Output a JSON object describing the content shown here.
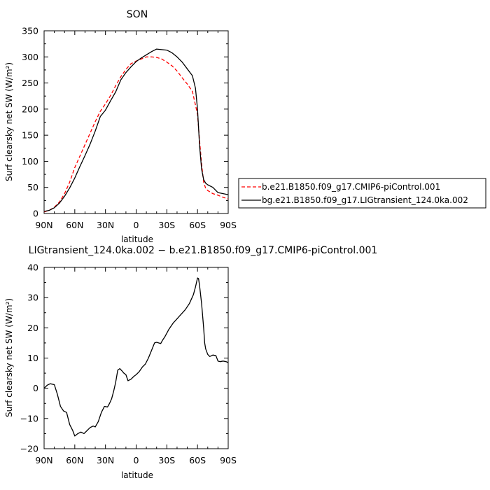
{
  "chart_data": [
    {
      "type": "line",
      "title": "SON",
      "xlabel": "latitude",
      "ylabel": "Surf clearsky net SW (W/m²)",
      "xlim": [
        90,
        -90
      ],
      "ylim": [
        0,
        350
      ],
      "x_ticks": [
        90,
        60,
        30,
        0,
        -30,
        -60,
        -90
      ],
      "x_tick_labels": [
        "90N",
        "60N",
        "30N",
        "0",
        "30S",
        "60S",
        "90S"
      ],
      "y_ticks": [
        0,
        50,
        100,
        150,
        200,
        250,
        300,
        350
      ],
      "y_tick_labels": [
        "0",
        "50",
        "100",
        "150",
        "200",
        "250",
        "300",
        "350"
      ],
      "legend_position": "right",
      "series": [
        {
          "name": "b.e21.B1850.f09_g17.CMIP6-piControl.001",
          "color": "#ff0000",
          "dashed": true,
          "x": [
            90,
            85,
            80,
            75,
            70,
            65,
            60,
            55,
            50,
            45,
            40,
            35,
            30,
            25,
            20,
            15,
            10,
            5,
            0,
            -5,
            -10,
            -15,
            -20,
            -25,
            -30,
            -35,
            -40,
            -45,
            -50,
            -55,
            -60,
            -62,
            -64,
            -66,
            -68,
            -70,
            -75,
            -80,
            -85,
            -90
          ],
          "y": [
            3,
            6,
            12,
            22,
            38,
            60,
            88,
            110,
            132,
            154,
            176,
            196,
            210,
            226,
            245,
            262,
            276,
            287,
            292,
            296,
            300,
            300,
            299,
            296,
            290,
            283,
            273,
            260,
            248,
            234,
            190,
            140,
            95,
            60,
            48,
            44,
            38,
            35,
            31,
            28
          ]
        },
        {
          "name": "bg.e21.B1850.f09_g17.LIGtransient_124.0ka.002",
          "color": "#000000",
          "dashed": false,
          "x": [
            90,
            85,
            80,
            75,
            70,
            65,
            60,
            55,
            50,
            45,
            40,
            35,
            30,
            25,
            20,
            15,
            10,
            5,
            0,
            -5,
            -10,
            -15,
            -20,
            -25,
            -30,
            -35,
            -40,
            -45,
            -50,
            -55,
            -58,
            -60,
            -62,
            -64,
            -66,
            -68,
            -70,
            -75,
            -80,
            -85,
            -90
          ],
          "y": [
            4,
            6,
            11,
            20,
            33,
            49,
            68,
            90,
            111,
            133,
            158,
            186,
            198,
            216,
            233,
            256,
            270,
            281,
            291,
            298,
            304,
            310,
            315,
            314,
            313,
            308,
            300,
            290,
            277,
            264,
            240,
            200,
            130,
            85,
            65,
            58,
            55,
            50,
            40,
            38,
            36
          ]
        }
      ]
    },
    {
      "type": "line",
      "title": "LIGtransient_124.0ka.002 − b.e21.B1850.f09_g17.CMIP6-piControl.001",
      "xlabel": "latitude",
      "ylabel": "Surf clearsky net SW (W/m²)",
      "xlim": [
        90,
        -90
      ],
      "ylim": [
        -20,
        40
      ],
      "x_ticks": [
        90,
        60,
        30,
        0,
        -30,
        -60,
        -90
      ],
      "x_tick_labels": [
        "90N",
        "60N",
        "30N",
        "0",
        "30S",
        "60S",
        "90S"
      ],
      "y_ticks": [
        -20,
        -10,
        0,
        10,
        20,
        30,
        40
      ],
      "y_tick_labels": [
        "−20",
        "−10",
        "0",
        "10",
        "20",
        "30",
        "40"
      ],
      "series": [
        {
          "name": "",
          "color": "#000000",
          "dashed": false,
          "x": [
            90,
            87,
            84,
            80,
            77,
            74,
            71,
            68,
            65,
            62,
            60,
            57,
            54,
            51,
            48,
            45,
            42,
            40,
            37,
            34,
            31,
            28,
            26,
            24,
            22,
            20,
            18,
            16,
            14,
            12,
            10,
            8,
            5,
            2,
            0,
            -3,
            -6,
            -9,
            -12,
            -15,
            -18,
            -20,
            -22,
            -24,
            -26,
            -28,
            -32,
            -36,
            -40,
            -44,
            -48,
            -52,
            -56,
            -58,
            -60,
            -61,
            -62,
            -64,
            -66,
            -67,
            -68,
            -70,
            -72,
            -75,
            -78,
            -80,
            -82,
            -85,
            -88,
            -90
          ],
          "y": [
            0,
            1,
            1.5,
            1.2,
            -2,
            -6,
            -7.5,
            -8,
            -12,
            -14,
            -15.8,
            -15,
            -14.5,
            -15,
            -14,
            -13,
            -12.5,
            -12.8,
            -11,
            -8,
            -6,
            -6.2,
            -5,
            -3.5,
            -1,
            2,
            6,
            6.5,
            5.8,
            5,
            4.5,
            2.5,
            3,
            4,
            4.5,
            5.5,
            7,
            8,
            10,
            12.5,
            15,
            15.2,
            15,
            14.8,
            16,
            17,
            19.5,
            21.5,
            23,
            24.5,
            26,
            28,
            31,
            33.5,
            36.5,
            36.3,
            34,
            28,
            20,
            15,
            13,
            11.2,
            10.5,
            11,
            10.8,
            9,
            8.8,
            9,
            8.8,
            8.5
          ]
        }
      ]
    }
  ]
}
